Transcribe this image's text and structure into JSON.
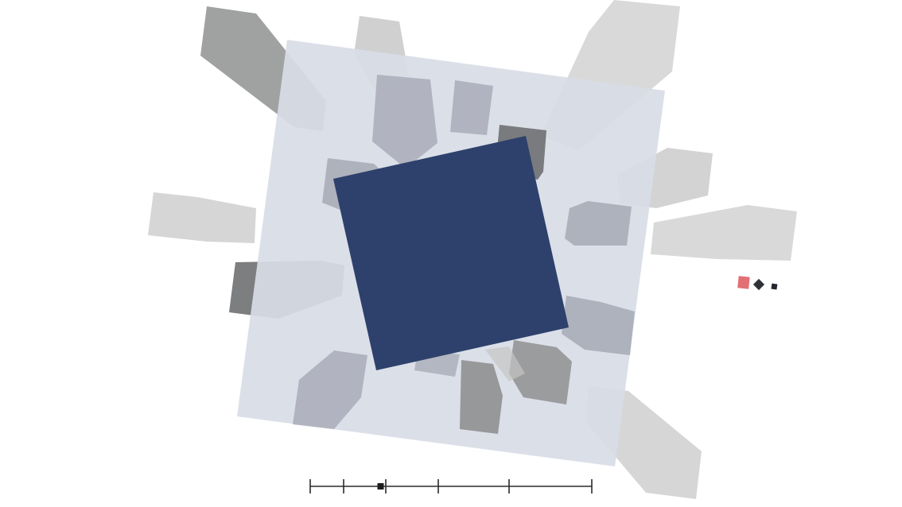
{
  "scene": {
    "background_color": "#ffffff",
    "board_color": "#d8dce6",
    "player_block_color": "#2e416c",
    "block_colors": [
      "#8f9090",
      "#a9adb8",
      "#c4c4c4",
      "#6f7072"
    ]
  },
  "hud": {
    "icons": [
      {
        "name": "pink-block-icon",
        "color": "#e26f74"
      },
      {
        "name": "dark-diamond-icon",
        "color": "#2f3038"
      },
      {
        "name": "small-dark-block-icon",
        "color": "#25262c"
      }
    ]
  },
  "timeline": {
    "tick_count": 7,
    "handle_position": 0.25
  }
}
